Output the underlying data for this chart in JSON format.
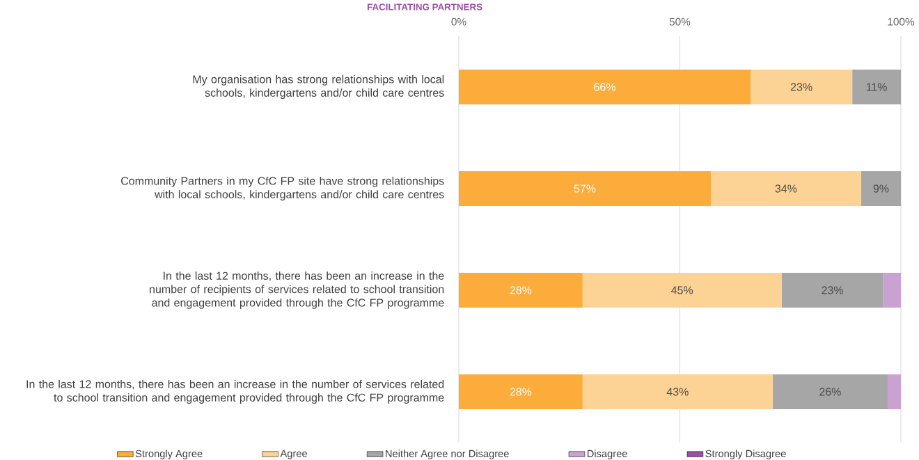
{
  "chart_data": {
    "type": "bar",
    "orientation": "horizontal",
    "stacked": true,
    "title": "FACILITATING PARTNERS",
    "categories": [
      "My organisation has strong relationships with local schools, kindergartens and/or child care centres",
      "Community Partners in my CfC FP site have strong relationships with local schools, kindergartens and/or child care centres",
      "In the last 12 months, there has been an increase in the number of recipients of services related to school transition and engagement provided through the CfC FP programme",
      "In the last 12 months, there has been an increase in the number of services related to school transition and engagement provided through the CfC FP programme"
    ],
    "series": [
      {
        "name": "Strongly Agree",
        "color": "#fbac3b",
        "values": [
          66,
          57,
          28,
          28
        ],
        "value_labels": [
          "66%",
          "57%",
          "28%",
          "28%"
        ]
      },
      {
        "name": "Agree",
        "color": "#fcd394",
        "values": [
          23,
          34,
          45,
          43
        ],
        "value_labels": [
          "23%",
          "34%",
          "45%",
          "43%"
        ]
      },
      {
        "name": "Neither Agree nor Disagree",
        "color": "#a6a6a6",
        "values": [
          11,
          9,
          23,
          26
        ],
        "value_labels": [
          "11%",
          "9%",
          "23%",
          "26%"
        ]
      },
      {
        "name": "Disagree",
        "color": "#c9a2d2",
        "values": [
          null,
          null,
          4,
          3
        ]
      },
      {
        "name": "Strongly Disagree",
        "color": "#9b4fa6",
        "values": [
          null,
          null,
          null,
          null
        ]
      }
    ],
    "xlim": [
      0,
      100
    ],
    "xticks": [
      {
        "value": 0,
        "label": "0%"
      },
      {
        "value": 50,
        "label": "50%"
      },
      {
        "value": 100,
        "label": "100%"
      }
    ],
    "grid": "x",
    "legend": "bottom"
  }
}
